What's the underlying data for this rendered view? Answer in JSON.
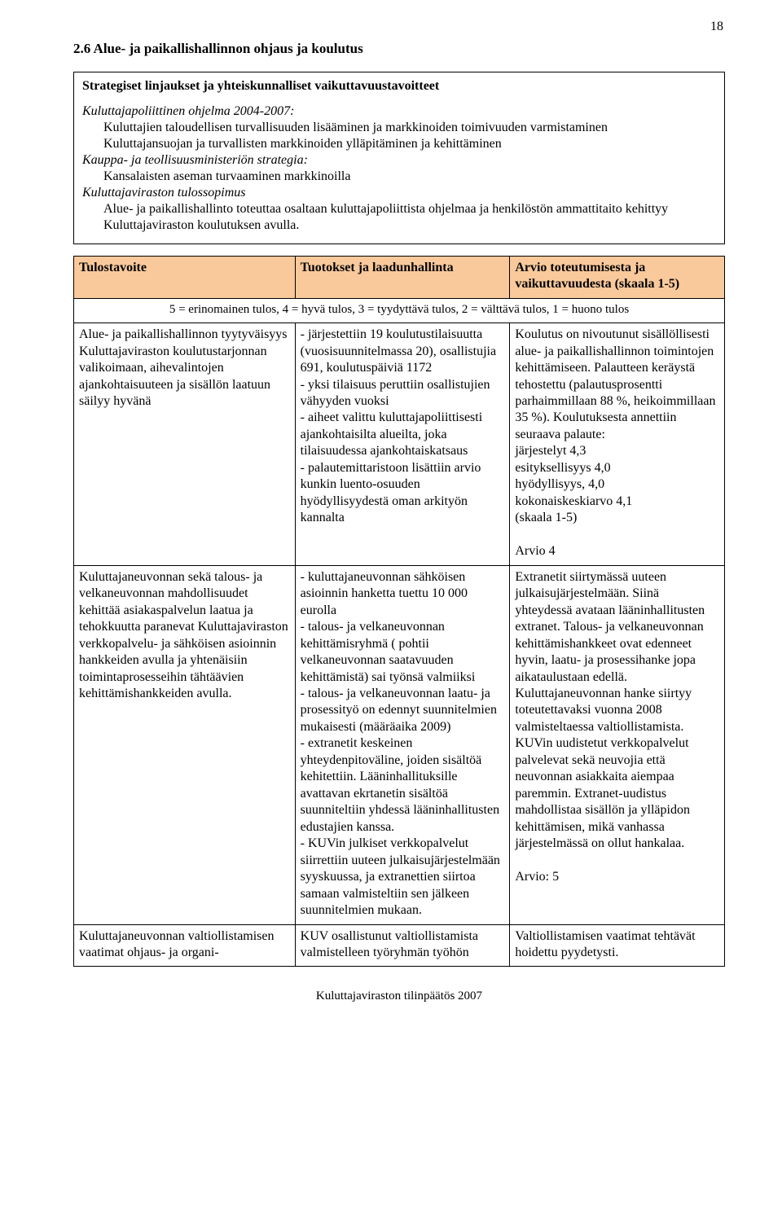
{
  "page_number": "18",
  "section_title": "2.6 Alue- ja paikallishallinnon ohjaus ja koulutus",
  "box": {
    "subtitle": "Strategiset linjaukset ja yhteiskunnalliset vaikuttavuustavoitteet",
    "l1": "Kuluttajapoliittinen ohjelma 2004-2007:",
    "l2": "Kuluttajien taloudellisen turvallisuuden lisääminen ja markkinoiden toimivuuden varmistaminen",
    "l3": "Kuluttajansuojan ja turvallisten markkinoiden ylläpitäminen ja kehittäminen",
    "l4": "Kauppa- ja teollisuusministeriön strategia:",
    "l5": "Kansalaisten aseman turvaaminen markkinoilla",
    "l6": "Kuluttajaviraston tulossopimus",
    "l7": "Alue- ja paikallishallinto toteuttaa osaltaan kuluttajapoliittista ohjelmaa ja henkilöstön ammattitaito kehittyy Kuluttajaviraston koulutuksen avulla."
  },
  "table": {
    "header_bg": "#f9c99b",
    "headers": [
      "Tulostavoite",
      "Tuotokset ja laadunhallinta",
      "Arvio toteutumisesta ja vaikuttavuudesta (skaala 1-5)"
    ],
    "scale_row": "5 = erinomainen tulos, 4 = hyvä tulos, 3 = tyydyttävä tulos, 2 = välttävä tulos, 1 = huono tulos",
    "rows": [
      {
        "c0": "Alue- ja paikallishallinnon tyytyväisyys Kuluttajaviraston koulutustarjonnan valikoimaan, aihevalintojen ajankohtaisuuteen ja sisällön laatuun säilyy hyvänä",
        "c1": "- järjestettiin 19 koulutustilaisuutta (vuosisuunnitelmassa 20), osallistujia 691, koulutuspäiviä 1172\n- yksi tilaisuus peruttiin osallistujien vähyyden vuoksi\n- aiheet valittu kuluttajapoliittisesti ajankohtaisilta alueilta, joka tilaisuudessa ajankohtaiskatsaus\n- palautemittaristoon lisättiin arvio kunkin luento-osuuden hyödyllisyydestä oman arkityön kannalta",
        "c2": "Koulutus on nivoutunut sisällöllisesti alue- ja paikallishallinnon toimintojen kehittämiseen. Palautteen keräystä tehostettu (palautusprosentti parhaimmillaan 88 %, heikoimmillaan 35 %). Koulutuksesta annettiin seuraava palaute:\njärjestelyt 4,3\nesityksellisyys 4,0\nhyödyllisyys, 4,0\nkokonaiskeskiarvo 4,1\n(skaala 1-5)\n\nArvio 4"
      },
      {
        "c0": "Kuluttajaneuvonnan sekä talous- ja velkaneuvonnan mahdollisuudet kehittää asiakaspalvelun laatua ja tehokkuutta paranevat Kuluttajaviraston verkkopalvelu- ja sähköisen asioinnin hankkeiden avulla ja yhtenäisiin toimintaprosesseihin tähtäävien kehittämishankkeiden avulla.",
        "c1": "- kuluttajaneuvonnan sähköisen asioinnin hanketta tuettu 10 000 eurolla\n- talous- ja velkaneuvonnan kehittämisryhmä ( pohtii velkaneuvonnan saatavuuden kehittämistä)  sai työnsä valmiiksi\n- talous- ja velkaneuvonnan laatu- ja prosessityö on edennyt suunnitelmien mukaisesti (määräaika 2009)\n- extranetit keskeinen yhteydenpitoväline, joiden sisältöä kehitettiin. Lääninhallituksille avattavan ekrtanetin sisältöä suunniteltiin yhdessä lääninhallitusten edustajien kanssa.\n- KUVin julkiset verkkopalvelut siirrettiin uuteen julkaisujärjestelmään syyskuussa, ja extranettien siirtoa samaan valmisteltiin sen jälkeen suunnitelmien mukaan.",
        "c2": "Extranetit siirtymässä uuteen julkaisujärjestelmään. Siinä yhteydessä avataan lääninhallitusten extranet. Talous- ja velkaneuvonnan kehittämishankkeet ovat edenneet hyvin, laatu- ja prosessihanke jopa aikataulustaan edellä. Kuluttajaneuvonnan hanke siirtyy toteutettavaksi vuonna 2008 valmisteltaessa valtiollistamista.\nKUVin uudistetut verkkopalvelut palvelevat sekä neuvojia että neuvonnan asiakkaita aiempaa paremmin. Extranet-uudistus mahdollistaa sisällön ja ylläpidon kehittämisen, mikä vanhassa järjestelmässä on ollut hankalaa.\n\nArvio: 5"
      },
      {
        "c0": "Kuluttajaneuvonnan valtiollistamisen vaatimat ohjaus- ja organi-",
        "c1": "KUV osallistunut valtiollistamista valmistelleen työryhmän työhön",
        "c2": "Valtiollistamisen vaatimat tehtävät hoidettu pyydetysti."
      }
    ]
  },
  "footer": "Kuluttajaviraston tilinpäätös 2007"
}
